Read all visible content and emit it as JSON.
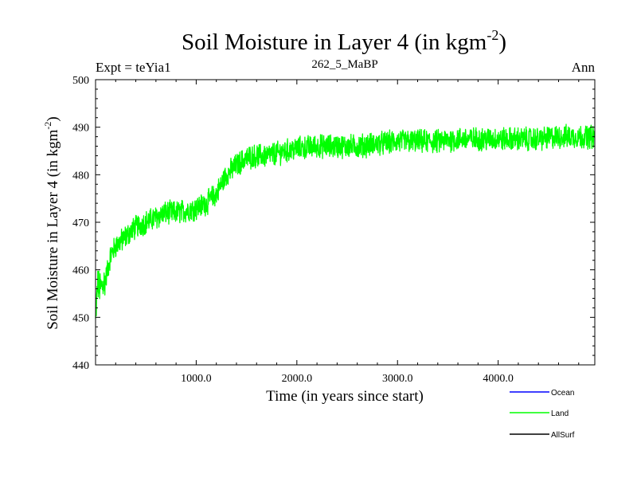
{
  "chart_data": {
    "type": "line",
    "title": "Soil Moisture in Layer 4 (in kgm",
    "title_exponent": "-2",
    "title_close": ")",
    "subtitle_left": "Expt = teYia1",
    "subtitle_center": "262_5_MaBP",
    "subtitle_right": "Ann",
    "xlabel": "Time (in years since start)",
    "ylabel": "Soil Moisture in Layer 4 (in kgm",
    "ylabel_exponent": "-2",
    "ylabel_close": ")",
    "xlim": [
      0,
      4960
    ],
    "ylim": [
      440,
      500
    ],
    "x_ticks": [
      1000,
      2000,
      3000,
      4000
    ],
    "x_tick_labels": [
      "1000.0",
      "2000.0",
      "3000.0",
      "4000.0"
    ],
    "y_ticks": [
      440,
      450,
      460,
      470,
      480,
      490,
      500
    ],
    "y_tick_labels": [
      "440",
      "450",
      "460",
      "470",
      "480",
      "490",
      "500"
    ],
    "legend": [
      {
        "name": "Ocean",
        "color": "#0000ff"
      },
      {
        "name": "Land",
        "color": "#00ff00"
      },
      {
        "name": "AllSurf",
        "color": "#000000"
      }
    ],
    "series": [
      {
        "name": "Land",
        "color": "#00ff00",
        "x": [
          0,
          20,
          50,
          100,
          150,
          200,
          300,
          400,
          500,
          600,
          700,
          800,
          900,
          1000,
          1100,
          1200,
          1300,
          1400,
          1500,
          1600,
          1700,
          1800,
          1900,
          2000,
          2200,
          2400,
          2600,
          2800,
          3000,
          3200,
          3400,
          3600,
          3800,
          4000,
          4200,
          4400,
          4600,
          4800,
          4960
        ],
        "values": [
          449,
          457,
          456,
          458,
          463,
          465,
          467,
          469,
          470,
          471,
          472,
          472,
          472.5,
          473,
          474,
          476,
          480,
          482,
          483.5,
          484,
          484,
          484.5,
          485,
          485.5,
          486,
          486,
          486,
          486.5,
          487,
          487,
          487,
          487.5,
          487.5,
          487.5,
          487.5,
          487.5,
          488,
          488,
          488
        ]
      }
    ]
  }
}
